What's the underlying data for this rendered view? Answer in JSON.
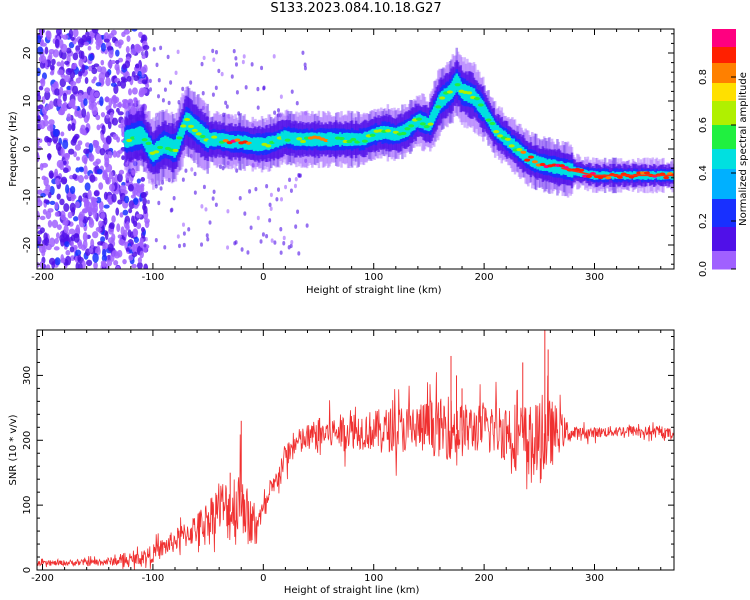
{
  "title": "S133.2023.084.10.18.G27",
  "colors": {
    "snr_line": "#f03030",
    "axis": "#000000",
    "background": "#ffffff"
  },
  "colorbar": {
    "label": "Normalized spectral amplitude",
    "ticks": [
      0.0,
      0.2,
      0.4,
      0.6,
      0.8
    ],
    "tick_labels": [
      "0.0",
      "0.2",
      "0.4",
      "0.6",
      "0.8"
    ],
    "range": [
      0,
      1
    ],
    "colormap": "rainbow (purple → blue → cyan → green → yellow → orange → red → pink)"
  },
  "chart_data": [
    {
      "type": "heatmap",
      "name": "spectrogram",
      "xlabel": "Height of straight line (km)",
      "ylabel": "Frequency (Hz)",
      "xlim": [
        -205,
        372
      ],
      "ylim": [
        -25,
        25
      ],
      "x_ticks": [
        -200,
        -100,
        0,
        100,
        200,
        300
      ],
      "y_ticks": [
        -20,
        -10,
        0,
        10,
        20
      ],
      "ridge": {
        "description": "Peak frequency vs height",
        "x": [
          -125,
          -110,
          -100,
          -90,
          -80,
          -70,
          -60,
          -50,
          -40,
          -30,
          -20,
          -10,
          0,
          10,
          20,
          30,
          40,
          50,
          60,
          70,
          80,
          90,
          100,
          110,
          120,
          130,
          140,
          150,
          160,
          170,
          175,
          180,
          190,
          200,
          210,
          220,
          230,
          240,
          250,
          260,
          270,
          280,
          290,
          300,
          320,
          340,
          372
        ],
        "y": [
          2,
          3,
          -1,
          1,
          0,
          6,
          4,
          2,
          2,
          1.5,
          1.5,
          1,
          1,
          1.5,
          2.5,
          2,
          2,
          2,
          2,
          2,
          2,
          2,
          3,
          3.5,
          3,
          4,
          6,
          5,
          10,
          12,
          14,
          12,
          11,
          8,
          4,
          2,
          0,
          -2,
          -3,
          -3.5,
          -4,
          -4.5,
          -5,
          -5.5,
          -5.5,
          -5.5,
          -5.5
        ]
      },
      "noise_region": {
        "x_range": [
          -205,
          -115
        ],
        "description": "broadband low-amplitude noise"
      }
    },
    {
      "type": "line",
      "name": "snr",
      "xlabel": "Height of straight line (km)",
      "ylabel": "SNR (10 * v/v)",
      "xlim": [
        -205,
        372
      ],
      "ylim": [
        0,
        370
      ],
      "x_ticks": [
        -200,
        -100,
        0,
        100,
        200,
        300
      ],
      "y_ticks": [
        0,
        100,
        200,
        300
      ],
      "envelope": {
        "description": "Approximate SNR mean and jitter vs height",
        "x": [
          -205,
          -150,
          -120,
          -100,
          -90,
          -80,
          -70,
          -60,
          -50,
          -40,
          -30,
          -25,
          -20,
          -15,
          -10,
          -5,
          0,
          10,
          20,
          30,
          50,
          80,
          100,
          130,
          150,
          170,
          180,
          200,
          220,
          240,
          250,
          260,
          270,
          280,
          300,
          330,
          372
        ],
        "mean": [
          10,
          12,
          15,
          25,
          35,
          45,
          55,
          65,
          80,
          100,
          90,
          100,
          120,
          90,
          60,
          80,
          90,
          130,
          175,
          195,
          210,
          215,
          215,
          218,
          220,
          218,
          215,
          220,
          215,
          200,
          195,
          210,
          215,
          210,
          212,
          215,
          210
        ],
        "jitter": [
          5,
          8,
          12,
          20,
          22,
          25,
          30,
          35,
          40,
          60,
          70,
          90,
          90,
          60,
          40,
          30,
          25,
          25,
          30,
          30,
          35,
          40,
          45,
          55,
          60,
          70,
          60,
          50,
          70,
          80,
          90,
          80,
          40,
          15,
          12,
          12,
          12
        ]
      },
      "peaks": {
        "x": [
          -30,
          -20,
          170,
          175,
          180,
          235,
          255,
          258
        ],
        "y": [
          150,
          230,
          330,
          300,
          280,
          320,
          370,
          340
        ]
      }
    }
  ]
}
